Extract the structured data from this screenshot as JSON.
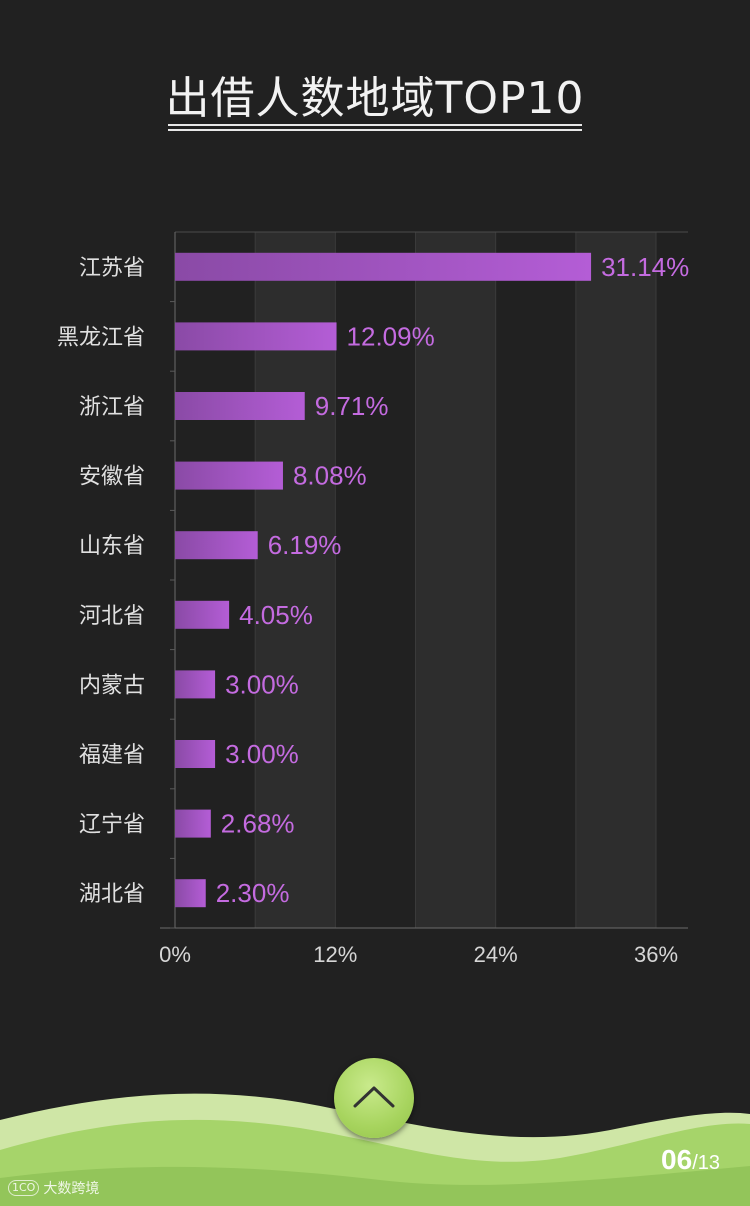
{
  "chart_data": {
    "type": "bar",
    "orientation": "horizontal",
    "title": "出借人数地域TOP10",
    "categories": [
      "江苏省",
      "黑龙江省",
      "浙江省",
      "安徽省",
      "山东省",
      "河北省",
      "内蒙古",
      "福建省",
      "辽宁省",
      "湖北省"
    ],
    "values": [
      31.14,
      12.09,
      9.71,
      8.08,
      6.19,
      4.05,
      3.0,
      3.0,
      2.68,
      2.3
    ],
    "value_labels": [
      "31.14%",
      "12.09%",
      "9.71%",
      "8.08%",
      "6.19%",
      "4.05%",
      "3.00%",
      "3.00%",
      "2.68%",
      "2.30%"
    ],
    "xlim": [
      0,
      36
    ],
    "xticks": [
      0,
      12,
      24,
      36
    ],
    "xtick_labels": [
      "0%",
      "12%",
      "24%",
      "36%"
    ],
    "grid": "alternating vertical bands",
    "legend": "none",
    "bar_color": "#b45dd6",
    "value_label_color": "#c46be0"
  },
  "footer": {
    "page_current": "06",
    "page_total": "/13",
    "watermark_text": "大数跨境",
    "watermark_logo": "1CO"
  },
  "icons": {
    "up": "chevron-up-icon"
  },
  "colors": {
    "background": "#212121",
    "band": "#2d2d2d",
    "wave_light": "#cfe6a6",
    "wave_dark": "#9ccd63"
  }
}
